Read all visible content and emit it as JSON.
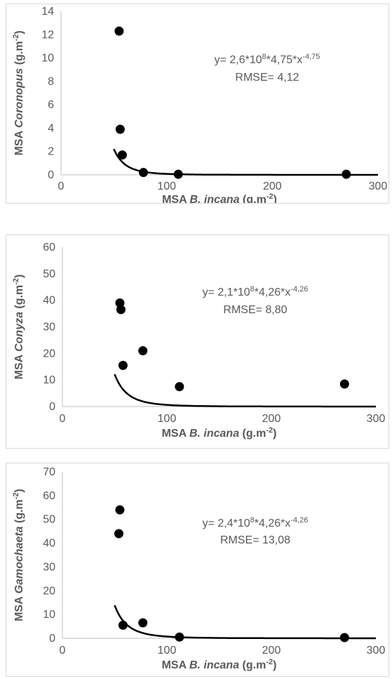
{
  "chart_data": [
    {
      "type": "scatter",
      "xlabel_prefix": "MSA ",
      "xlabel_italic": "B. incana",
      "xlabel_suffix": " (g.m",
      "xlabel_sup": "-2",
      "xlabel_close": ")",
      "ylabel_prefix": "MSA ",
      "ylabel_italic": "Coronopus",
      "ylabel_suffix": " (g.m",
      "ylabel_sup": "-2",
      "ylabel_close": ")",
      "xlim": [
        0,
        300
      ],
      "ylim": [
        0,
        14
      ],
      "xticks": [
        0,
        100,
        200,
        300
      ],
      "xtick_labels": [
        "0",
        "100",
        "200",
        "300"
      ],
      "yticks": [
        0,
        2,
        4,
        6,
        8,
        10,
        12,
        14
      ],
      "ytick_labels": [
        "0",
        "2",
        "4",
        "6",
        "8",
        "10",
        "12",
        "14"
      ],
      "points": [
        {
          "x": 55,
          "y": 12.3
        },
        {
          "x": 56,
          "y": 3.9
        },
        {
          "x": 58,
          "y": 1.7
        },
        {
          "x": 78,
          "y": 0.2
        },
        {
          "x": 111,
          "y": 0.05
        },
        {
          "x": 270,
          "y": 0.05
        }
      ],
      "fit": {
        "a": 260000000,
        "b": 4.75,
        "x_start": 50,
        "x_end": 300
      },
      "equation": {
        "pre": "y= 2,6*10",
        "sup1": "8",
        "mid": "*4,75*x",
        "sup2": "-4,75"
      },
      "rmse": "RMSE= 4,12"
    },
    {
      "type": "scatter",
      "xlabel_prefix": "MSA ",
      "xlabel_italic": "B. incana",
      "xlabel_suffix": " (g.m",
      "xlabel_sup": "-2",
      "xlabel_close": ")",
      "ylabel_prefix": "MSA ",
      "ylabel_italic": "Conyza",
      "ylabel_suffix": " (g.m",
      "ylabel_sup": "-2",
      "ylabel_close": ")",
      "xlim": [
        0,
        300
      ],
      "ylim": [
        0,
        60
      ],
      "xticks": [
        0,
        100,
        200,
        300
      ],
      "xtick_labels": [
        "0",
        "100",
        "200",
        "300"
      ],
      "yticks": [
        0,
        10,
        20,
        30,
        40,
        50,
        60
      ],
      "ytick_labels": [
        "0",
        "10",
        "20",
        "30",
        "40",
        "50",
        "60"
      ],
      "points": [
        {
          "x": 55,
          "y": 39
        },
        {
          "x": 56,
          "y": 36.5
        },
        {
          "x": 58,
          "y": 15.5
        },
        {
          "x": 77,
          "y": 21
        },
        {
          "x": 112,
          "y": 7.5
        },
        {
          "x": 270,
          "y": 8.5
        }
      ],
      "fit": {
        "a": 210000000,
        "b": 4.26,
        "x_start": 50,
        "x_end": 300
      },
      "equation": {
        "pre": "y= 2,1*10",
        "sup1": "8",
        "mid": "*4,26*x",
        "sup2": "-4,26"
      },
      "rmse": "RMSE= 8,80"
    },
    {
      "type": "scatter",
      "xlabel_prefix": "MSA ",
      "xlabel_italic": "B. incana",
      "xlabel_suffix": " (g.m",
      "xlabel_sup": "-2",
      "xlabel_close": ")",
      "ylabel_prefix": "MSA ",
      "ylabel_italic": "Gamochaeta",
      "ylabel_suffix": " (g.m",
      "ylabel_sup": "-2",
      "ylabel_close": ")",
      "xlim": [
        0,
        300
      ],
      "ylim": [
        0,
        70
      ],
      "xticks": [
        0,
        100,
        200,
        300
      ],
      "xtick_labels": [
        "0",
        "100",
        "200",
        "300"
      ],
      "yticks": [
        0,
        10,
        20,
        30,
        40,
        50,
        60,
        70
      ],
      "ytick_labels": [
        "0",
        "10",
        "20",
        "30",
        "40",
        "50",
        "60",
        "70"
      ],
      "points": [
        {
          "x": 55,
          "y": 54
        },
        {
          "x": 54,
          "y": 44
        },
        {
          "x": 58,
          "y": 5.5
        },
        {
          "x": 77,
          "y": 6.5
        },
        {
          "x": 112,
          "y": 0.5
        },
        {
          "x": 270,
          "y": 0.3
        }
      ],
      "fit": {
        "a": 240000000,
        "b": 4.26,
        "x_start": 50,
        "x_end": 300
      },
      "equation": {
        "pre": "y= 2,4*10",
        "sup1": "8",
        "mid": "*4,26*x",
        "sup2": "-4,26"
      },
      "rmse": "RMSE= 13,08"
    }
  ]
}
